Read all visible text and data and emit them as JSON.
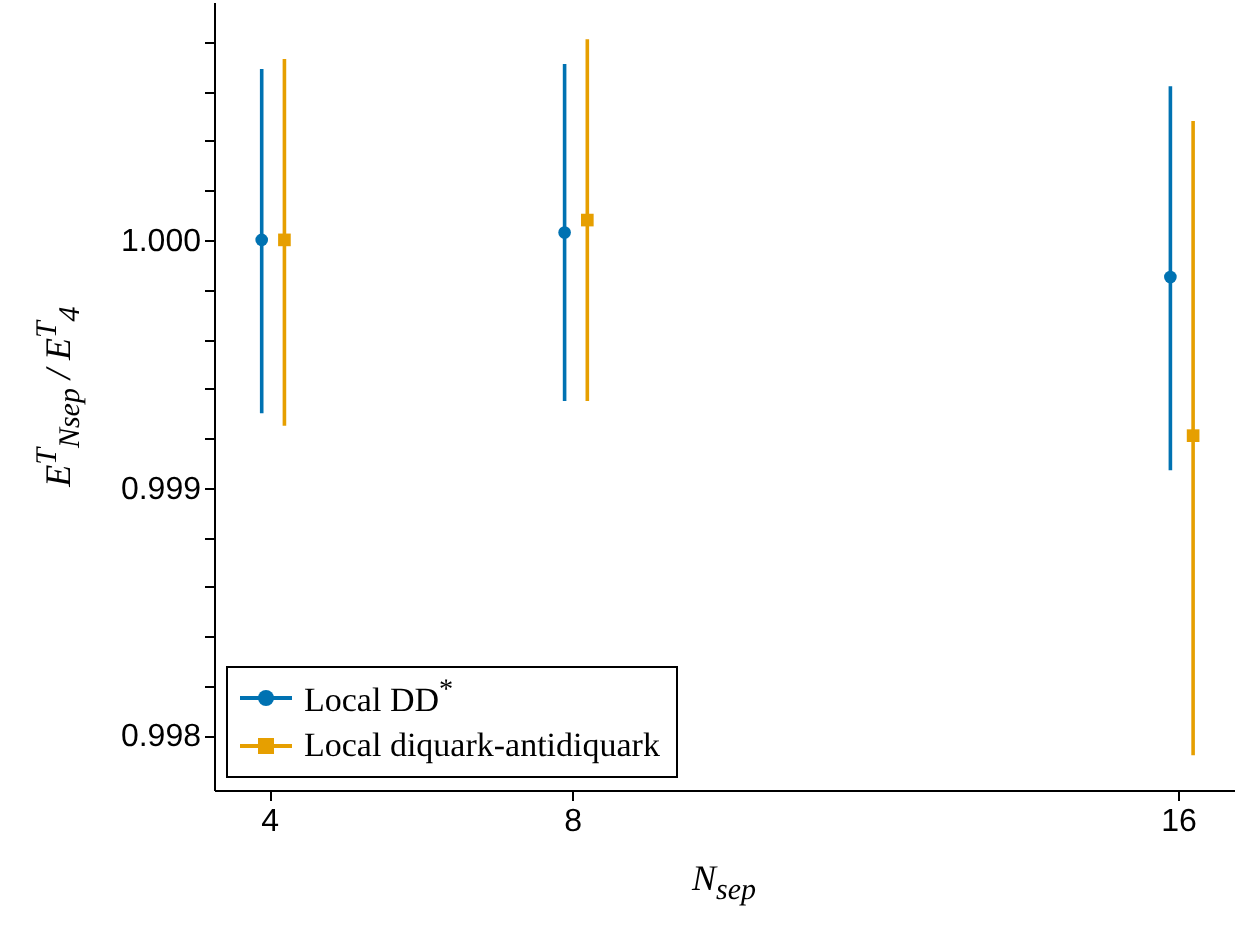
{
  "chart_data": {
    "type": "scatter",
    "xlabel": "N$_{sep}$",
    "ylabel": "E$^{T}$$_{Nsep}$ / E$^{T}$$_{4}$",
    "xlim": [
      3.27,
      16.74
    ],
    "xticks": [
      4,
      8,
      16
    ],
    "ylim": [
      0.99778,
      1.00096
    ],
    "yticks": [
      {
        "value": 0.998,
        "label": "0.998"
      },
      {
        "value": 0.9982,
        "label": null
      },
      {
        "value": 0.9984,
        "label": null
      },
      {
        "value": 0.9986,
        "label": null
      },
      {
        "value": 0.9988,
        "label": null
      },
      {
        "value": 0.999,
        "label": "0.999"
      },
      {
        "value": 0.9992,
        "label": null
      },
      {
        "value": 0.9994,
        "label": null
      },
      {
        "value": 0.9996,
        "label": null
      },
      {
        "value": 0.9998,
        "label": null
      },
      {
        "value": 1,
        "label": "1.000"
      },
      {
        "value": 1.0002,
        "label": null
      },
      {
        "value": 1.0004,
        "label": null
      },
      {
        "value": 1.0006,
        "label": null
      },
      {
        "value": 1.0008,
        "label": null
      }
    ],
    "grid": false,
    "legend": "bottom left",
    "series": [
      {
        "name": "Local DD$^{*}$",
        "color": "#0072b2",
        "marker": "circle",
        "x": [
          3.9,
          7.9,
          15.9
        ],
        "values": [
          1.0,
          1.00003,
          0.99985
        ],
        "errors": [
          [
            0.9993,
            1.00069
          ],
          [
            0.99935,
            1.00071
          ],
          [
            0.99907,
            1.00062
          ]
        ]
      },
      {
        "name": "Local diquark-antidiquark",
        "color": "#e69f00",
        "marker": "square",
        "x": [
          4.2,
          8.2,
          16.2
        ],
        "values": [
          1.0,
          1.00008,
          0.99921
        ],
        "errors": [
          [
            0.99925,
            1.00073
          ],
          [
            0.99935,
            1.00081
          ],
          [
            0.99792,
            1.00048
          ]
        ]
      }
    ]
  }
}
